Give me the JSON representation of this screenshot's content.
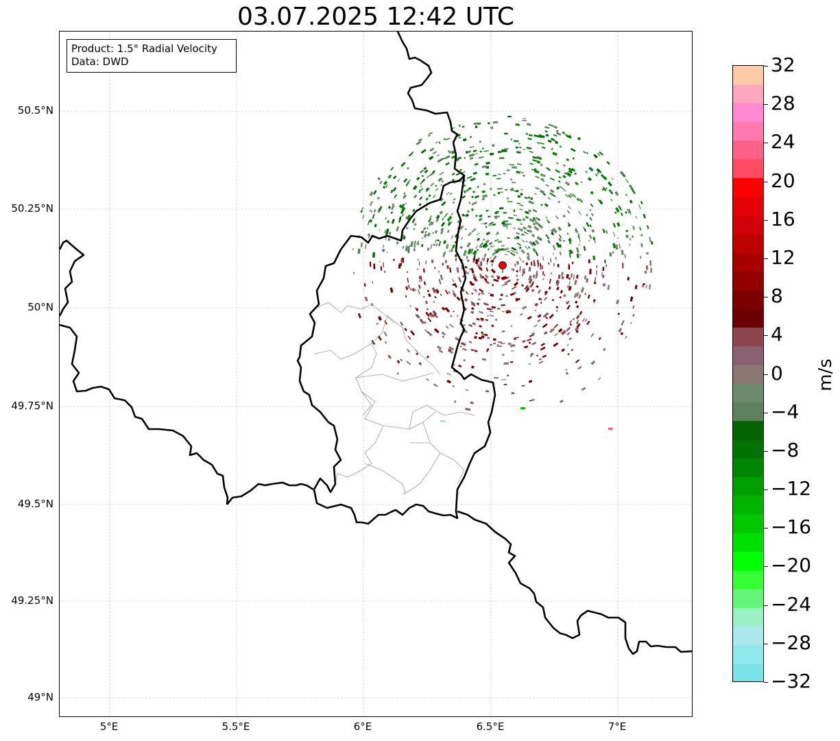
{
  "title": "03.07.2025 12:42 UTC",
  "info": {
    "product": "Product: 1.5° Radial Velocity",
    "data": "Data: DWD"
  },
  "axes": {
    "lat_ticks": [
      "50.5°N",
      "50.25°N",
      "50°N",
      "49.75°N",
      "49.5°N",
      "49.25°N",
      "49°N"
    ],
    "lon_ticks": [
      "5°E",
      "5.5°E",
      "6°E",
      "6.5°E",
      "7°E"
    ]
  },
  "map": {
    "extent": {
      "lon_min": 4.8,
      "lon_max": 7.3,
      "lat_min": 48.95,
      "lat_max": 50.7
    },
    "gridlines": true,
    "radar_site": {
      "lon": 6.55,
      "lat": 50.11,
      "color": "#ee0000"
    },
    "country_border_color": "#000000",
    "district_border_color": "#9a9a9a"
  },
  "colorbar": {
    "unit": "m/s",
    "min": -32,
    "max": 32,
    "step": 2.9,
    "tick_labels": [
      "32",
      "28",
      "24",
      "20",
      "16",
      "12",
      "8",
      "4",
      "0",
      "−4",
      "−8",
      "−12",
      "−16",
      "−20",
      "−24",
      "−28",
      "−32"
    ],
    "colors_top_to_bottom": [
      "#ffcaa8",
      "#ffa6c2",
      "#ff88d2",
      "#ff7aac",
      "#ff6088",
      "#ff4a64",
      "#ff0000",
      "#e60008",
      "#d20008",
      "#bd0000",
      "#a80000",
      "#920000",
      "#7c0000",
      "#6a0000",
      "#8a464c",
      "#886270",
      "#8a7674",
      "#6e8a6e",
      "#5e805e",
      "#036300",
      "#007200",
      "#018601",
      "#009e00",
      "#00b400",
      "#00c800",
      "#00e000",
      "#00ff00",
      "#34ff34",
      "#66f57a",
      "#9cf1c4",
      "#abe8ec",
      "#8ee8ec",
      "#78e4e8"
    ]
  }
}
